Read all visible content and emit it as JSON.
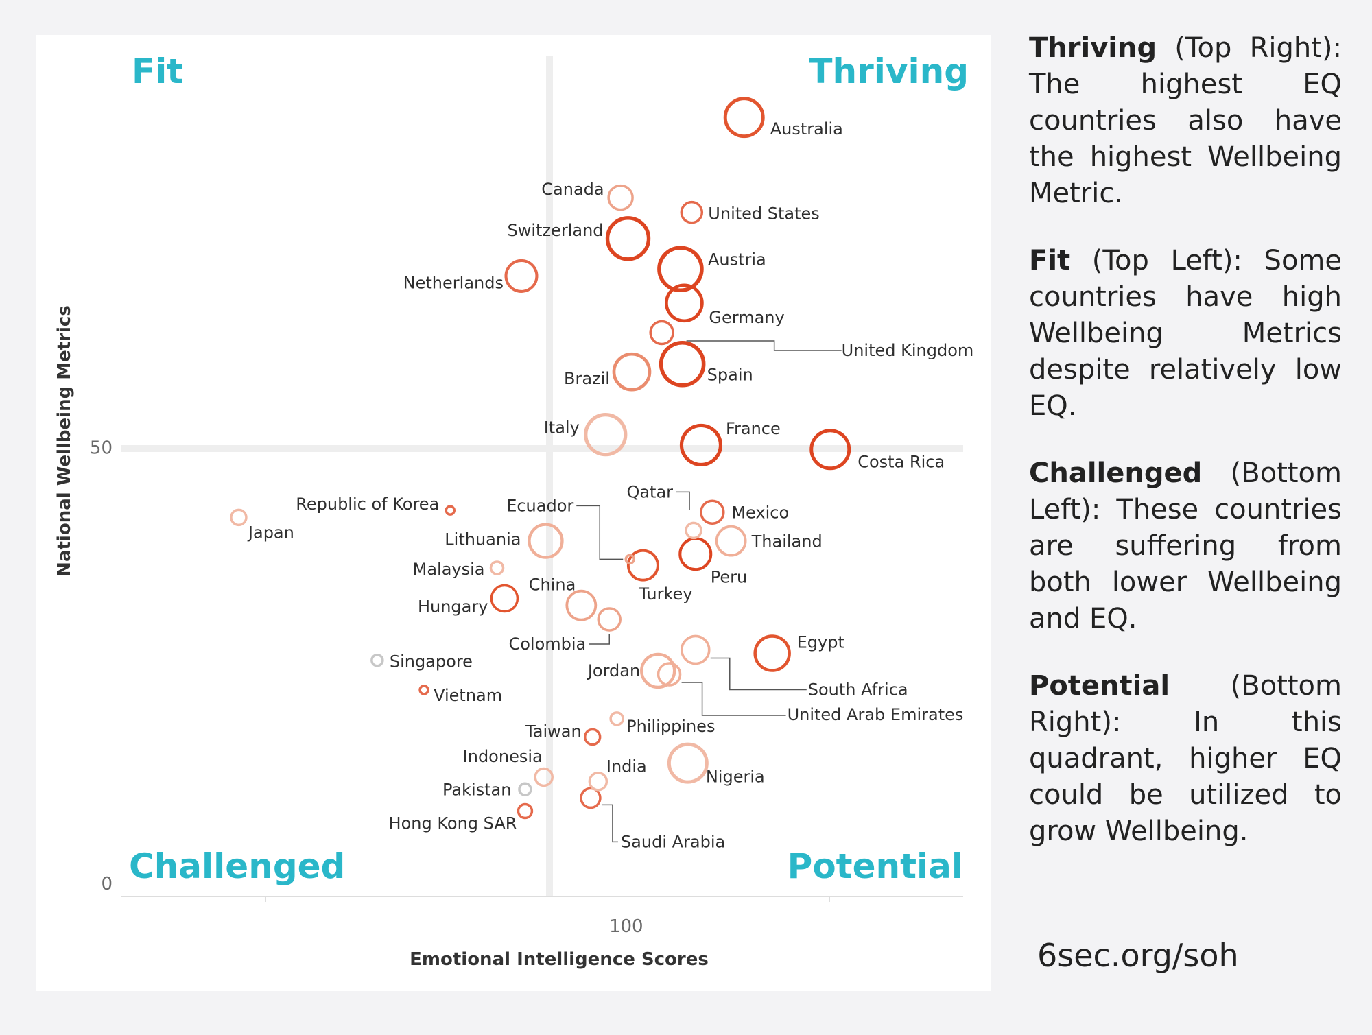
{
  "chart_data": {
    "type": "scatter",
    "xlabel": "Emotional Intelligence Scores",
    "ylabel": "National Wellbeing Metrics",
    "x_ticks": [
      100
    ],
    "y_ticks": [
      0,
      50
    ],
    "xlim": [
      73,
      118
    ],
    "ylim": [
      -1.5,
      95
    ],
    "grid": false,
    "quadrants": {
      "top_left": "Fit",
      "top_right": "Thriving",
      "bottom_left": "Challenged",
      "bottom_right": "Potential"
    },
    "points": [
      {
        "label": "Australia",
        "x": 106.3,
        "y": 87.9,
        "size": 55,
        "color": "#e2552f"
      },
      {
        "label": "Canada",
        "x": 99.7,
        "y": 78.7,
        "size": 35,
        "color": "#eda38a"
      },
      {
        "label": "United States",
        "x": 103.5,
        "y": 77.0,
        "size": 30,
        "color": "#e56a4c"
      },
      {
        "label": "Switzerland",
        "x": 100.1,
        "y": 74.0,
        "size": 60,
        "color": "#dd4521"
      },
      {
        "label": "Austria",
        "x": 102.9,
        "y": 70.5,
        "size": 62,
        "color": "#dd4521"
      },
      {
        "label": "Netherlands",
        "x": 94.4,
        "y": 69.7,
        "size": 45,
        "color": "#e56a4c"
      },
      {
        "label": "Germany",
        "x": 103.1,
        "y": 66.6,
        "size": 52,
        "color": "#dd4521"
      },
      {
        "label": "United Kingdom",
        "x": 101.9,
        "y": 63.2,
        "size": 33,
        "color": "#e56a4c"
      },
      {
        "label": "Spain",
        "x": 103.0,
        "y": 59.6,
        "size": 62,
        "color": "#dd4521"
      },
      {
        "label": "Brazil",
        "x": 100.3,
        "y": 58.7,
        "size": 52,
        "color": "#ea8c6e"
      },
      {
        "label": "Italy",
        "x": 98.9,
        "y": 51.5,
        "size": 58,
        "color": "#f1b9a5"
      },
      {
        "label": "France",
        "x": 104.0,
        "y": 50.3,
        "size": 57,
        "color": "#dd4521"
      },
      {
        "label": "Costa Rica",
        "x": 110.9,
        "y": 49.8,
        "size": 55,
        "color": "#dd4521"
      },
      {
        "label": "Republic of Korea",
        "x": 90.6,
        "y": 42.8,
        "size": 12,
        "color": "#e56a4c"
      },
      {
        "label": "Mexico",
        "x": 104.6,
        "y": 42.6,
        "size": 33,
        "color": "#e56a4c"
      },
      {
        "label": "Japan",
        "x": 79.3,
        "y": 42.0,
        "size": 22,
        "color": "#f1b9a5"
      },
      {
        "label": "Qatar",
        "x": 103.6,
        "y": 40.5,
        "size": 22,
        "color": "#f1b9a5"
      },
      {
        "label": "Lithuania",
        "x": 95.7,
        "y": 39.3,
        "size": 48,
        "color": "#f0af98"
      },
      {
        "label": "Thailand",
        "x": 105.6,
        "y": 39.3,
        "size": 42,
        "color": "#f0af98"
      },
      {
        "label": "Peru",
        "x": 103.7,
        "y": 37.8,
        "size": 45,
        "color": "#dd4521"
      },
      {
        "label": "Ecuador",
        "x": 100.2,
        "y": 37.2,
        "size": 12,
        "color": "#eda38a"
      },
      {
        "label": "Turkey",
        "x": 100.9,
        "y": 36.5,
        "size": 43,
        "color": "#e2552f"
      },
      {
        "label": "Malaysia",
        "x": 93.1,
        "y": 36.2,
        "size": 18,
        "color": "#f1b9a5"
      },
      {
        "label": "Hungary",
        "x": 93.5,
        "y": 32.7,
        "size": 38,
        "color": "#e2552f"
      },
      {
        "label": "China",
        "x": 97.6,
        "y": 31.9,
        "size": 42,
        "color": "#eda38a"
      },
      {
        "label": "Colombia",
        "x": 99.1,
        "y": 30.3,
        "size": 32,
        "color": "#eda38a"
      },
      {
        "label": "Egypt",
        "x": 107.8,
        "y": 26.4,
        "size": 50,
        "color": "#e2552f"
      },
      {
        "label": "South Africa",
        "x": 103.7,
        "y": 26.8,
        "size": 40,
        "color": "#f0af98"
      },
      {
        "label": "Singapore",
        "x": 86.7,
        "y": 25.6,
        "size": 16,
        "color": "#c7c7c7"
      },
      {
        "label": "Jordan",
        "x": 101.7,
        "y": 24.4,
        "size": 48,
        "color": "#f0af98"
      },
      {
        "label": "United Arab Emirates",
        "x": 102.3,
        "y": 24.0,
        "size": 32,
        "color": "#f0af98"
      },
      {
        "label": "Vietnam",
        "x": 89.2,
        "y": 22.2,
        "size": 12,
        "color": "#e56a4c"
      },
      {
        "label": "Philippines",
        "x": 99.5,
        "y": 18.9,
        "size": 18,
        "color": "#f1b9a5"
      },
      {
        "label": "Taiwan",
        "x": 98.2,
        "y": 16.8,
        "size": 22,
        "color": "#e56a4c"
      },
      {
        "label": "Nigeria",
        "x": 103.3,
        "y": 13.8,
        "size": 55,
        "color": "#f1b9a5"
      },
      {
        "label": "Indonesia",
        "x": 95.6,
        "y": 12.2,
        "size": 25,
        "color": "#f1b9a5"
      },
      {
        "label": "India",
        "x": 98.5,
        "y": 11.7,
        "size": 25,
        "color": "#f1b9a5"
      },
      {
        "label": "Pakistan",
        "x": 94.6,
        "y": 10.8,
        "size": 17,
        "color": "#c7c7c7"
      },
      {
        "label": "Saudi Arabia",
        "x": 98.1,
        "y": 9.8,
        "size": 28,
        "color": "#e56a4c"
      },
      {
        "label": "Hong Kong SAR",
        "x": 94.6,
        "y": 8.3,
        "size": 20,
        "color": "#e56a4c"
      }
    ]
  },
  "annotations": {
    "thriving": {
      "term": "Thriving",
      "text": " (Top Right): The highest EQ countries also have the highest Wellbeing Metric."
    },
    "fit": {
      "term": "Fit",
      "text": " (Top Left): Some countries have high Wellbeing Metrics despite relatively low EQ."
    },
    "challenged": {
      "term": "Challenged",
      "text": " (Bottom Left): These countries are suffering from both lower Wellbeing and EQ."
    },
    "potential": {
      "term": "Potential",
      "text": " (Bottom Right): In this quadrant, higher EQ could be utilized to grow Wellbeing."
    }
  },
  "source": "6sec.org/soh"
}
